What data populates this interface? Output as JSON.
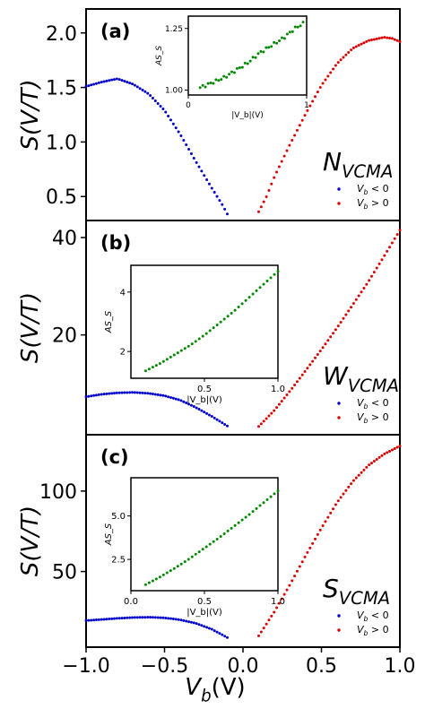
{
  "figure": {
    "xlabel_main": "V",
    "xlabel_sub": "b",
    "xlabel_paren": "(V)",
    "x_ticks": [
      "−1.0",
      "−0.5",
      "0.0",
      "0.5",
      "1.0"
    ],
    "x_tick_values": [
      -1.0,
      -0.5,
      0.0,
      0.5,
      1.0
    ]
  },
  "chart_data": [
    {
      "type": "scatter",
      "panel_label": "(a)",
      "ylabel": "S(V/T)",
      "material_label_main": "N",
      "material_label_sub": "VCMA",
      "xlim": [
        -1.0,
        1.0
      ],
      "ylim": [
        0.28,
        2.22
      ],
      "y_ticks": [
        "0.5",
        "1.0",
        "1.5",
        "2.0"
      ],
      "y_tick_values": [
        0.5,
        1.0,
        1.5,
        2.0
      ],
      "legend": [
        {
          "label_main": "V",
          "label_sub": "b",
          "label_rest": " < 0",
          "color": "#0000cc"
        },
        {
          "label_main": "V",
          "label_sub": "b",
          "label_rest": " > 0",
          "color": "#dd0000"
        }
      ],
      "neg_curve": [
        [
          -1.0,
          1.51
        ],
        [
          -0.9,
          1.55
        ],
        [
          -0.8,
          1.58
        ],
        [
          -0.7,
          1.53
        ],
        [
          -0.6,
          1.44
        ],
        [
          -0.5,
          1.29
        ],
        [
          -0.4,
          1.07
        ],
        [
          -0.3,
          0.82
        ],
        [
          -0.2,
          0.58
        ],
        [
          -0.13,
          0.42
        ],
        [
          -0.1,
          0.34
        ]
      ],
      "pos_curve": [
        [
          0.1,
          0.36
        ],
        [
          0.15,
          0.5
        ],
        [
          0.2,
          0.68
        ],
        [
          0.3,
          0.98
        ],
        [
          0.4,
          1.26
        ],
        [
          0.5,
          1.52
        ],
        [
          0.6,
          1.72
        ],
        [
          0.7,
          1.86
        ],
        [
          0.8,
          1.93
        ],
        [
          0.9,
          1.96
        ],
        [
          0.95,
          1.95
        ],
        [
          1.0,
          1.92
        ]
      ],
      "neg_color": "#0000cc",
      "pos_color": "#dd0000",
      "inset": {
        "xlabel": "|V_b|(V)",
        "ylabel": "AS_S",
        "xlim": [
          0.0,
          1.0
        ],
        "ylim": [
          0.98,
          1.3
        ],
        "x_ticks": [
          "0",
          "1"
        ],
        "x_tick_values": [
          0,
          1
        ],
        "y_ticks": [
          "1.00",
          "1.25"
        ],
        "y_tick_values": [
          1.0,
          1.25
        ],
        "color": "#008800",
        "curve": [
          [
            0.1,
            1.01
          ],
          [
            0.2,
            1.03
          ],
          [
            0.3,
            1.05
          ],
          [
            0.4,
            1.08
          ],
          [
            0.5,
            1.11
          ],
          [
            0.6,
            1.15
          ],
          [
            0.7,
            1.18
          ],
          [
            0.8,
            1.21
          ],
          [
            0.9,
            1.25
          ],
          [
            0.97,
            1.27
          ]
        ]
      }
    },
    {
      "type": "scatter",
      "panel_label": "(b)",
      "ylabel": "S(V/T)",
      "material_label_main": "W",
      "material_label_sub": "VCMA",
      "xlim": [
        -1.0,
        1.0
      ],
      "ylim": [
        -0.5,
        43.5
      ],
      "y_ticks": [
        "20",
        "40"
      ],
      "y_tick_values": [
        20,
        40
      ],
      "legend": [
        {
          "label_main": "V",
          "label_sub": "b",
          "label_rest": " < 0",
          "color": "#0000cc"
        },
        {
          "label_main": "V",
          "label_sub": "b",
          "label_rest": " > 0",
          "color": "#dd0000"
        }
      ],
      "neg_curve": [
        [
          -1.0,
          7.3
        ],
        [
          -0.9,
          7.8
        ],
        [
          -0.8,
          8.1
        ],
        [
          -0.7,
          8.2
        ],
        [
          -0.6,
          8.0
        ],
        [
          -0.5,
          7.5
        ],
        [
          -0.4,
          6.6
        ],
        [
          -0.3,
          5.1
        ],
        [
          -0.2,
          3.3
        ],
        [
          -0.1,
          1.3
        ]
      ],
      "pos_curve": [
        [
          0.1,
          1.2
        ],
        [
          0.2,
          4.5
        ],
        [
          0.3,
          8.5
        ],
        [
          0.4,
          12.7
        ],
        [
          0.5,
          17.0
        ],
        [
          0.6,
          21.5
        ],
        [
          0.7,
          26.2
        ],
        [
          0.8,
          31.0
        ],
        [
          0.9,
          36.2
        ],
        [
          1.0,
          41.5
        ]
      ],
      "neg_color": "#0000cc",
      "pos_color": "#dd0000",
      "inset": {
        "xlabel": "|V_b|(V)",
        "ylabel": "AS_S",
        "xlim": [
          0.0,
          1.0
        ],
        "ylim": [
          1.1,
          4.9
        ],
        "x_ticks": [
          "0.5",
          "1.0"
        ],
        "x_tick_values": [
          0.5,
          1.0
        ],
        "y_ticks": [
          "2",
          "4"
        ],
        "y_tick_values": [
          2,
          4
        ],
        "color": "#008800",
        "curve": [
          [
            0.1,
            1.35
          ],
          [
            0.2,
            1.6
          ],
          [
            0.3,
            1.9
          ],
          [
            0.4,
            2.2
          ],
          [
            0.5,
            2.55
          ],
          [
            0.6,
            2.95
          ],
          [
            0.7,
            3.35
          ],
          [
            0.8,
            3.8
          ],
          [
            0.9,
            4.25
          ],
          [
            1.0,
            4.7
          ]
        ]
      }
    },
    {
      "type": "scatter",
      "panel_label": "(c)",
      "ylabel": "S(V/T)",
      "material_label_main": "S",
      "material_label_sub": "VCMA",
      "xlim": [
        -1.0,
        1.0
      ],
      "ylim": [
        3.0,
        135.0
      ],
      "y_ticks": [
        "50",
        "100"
      ],
      "y_tick_values": [
        50,
        100
      ],
      "legend": [
        {
          "label_main": "V",
          "label_sub": "b",
          "label_rest": " < 0",
          "color": "#0000cc"
        },
        {
          "label_main": "V",
          "label_sub": "b",
          "label_rest": " > 0",
          "color": "#dd0000"
        }
      ],
      "neg_curve": [
        [
          -1.0,
          19.5
        ],
        [
          -0.9,
          20.2
        ],
        [
          -0.8,
          20.9
        ],
        [
          -0.7,
          21.4
        ],
        [
          -0.6,
          21.6
        ],
        [
          -0.5,
          21.2
        ],
        [
          -0.4,
          20.0
        ],
        [
          -0.3,
          17.8
        ],
        [
          -0.2,
          14.2
        ],
        [
          -0.1,
          9.0
        ]
      ],
      "pos_curve": [
        [
          0.1,
          10.0
        ],
        [
          0.2,
          25.0
        ],
        [
          0.3,
          42.0
        ],
        [
          0.4,
          60.0
        ],
        [
          0.5,
          77.0
        ],
        [
          0.6,
          93.0
        ],
        [
          0.7,
          106.0
        ],
        [
          0.8,
          116.0
        ],
        [
          0.9,
          123.0
        ],
        [
          1.0,
          128.0
        ]
      ],
      "neg_color": "#0000cc",
      "pos_color": "#dd0000",
      "inset": {
        "xlabel": "|V_b|(V)",
        "ylabel": "AS_S",
        "xlim": [
          0.0,
          1.0
        ],
        "ylim": [
          0.7,
          7.2
        ],
        "x_ticks": [
          "0.0",
          "0.5",
          "1.0"
        ],
        "x_tick_values": [
          0.0,
          0.5,
          1.0
        ],
        "y_ticks": [
          "2.5",
          "5.0"
        ],
        "y_tick_values": [
          2.5,
          5.0
        ],
        "color": "#008800",
        "curve": [
          [
            0.1,
            1.05
          ],
          [
            0.2,
            1.5
          ],
          [
            0.3,
            2.0
          ],
          [
            0.4,
            2.55
          ],
          [
            0.5,
            3.15
          ],
          [
            0.6,
            3.75
          ],
          [
            0.7,
            4.4
          ],
          [
            0.8,
            5.05
          ],
          [
            0.9,
            5.75
          ],
          [
            1.0,
            6.45
          ]
        ]
      }
    }
  ]
}
